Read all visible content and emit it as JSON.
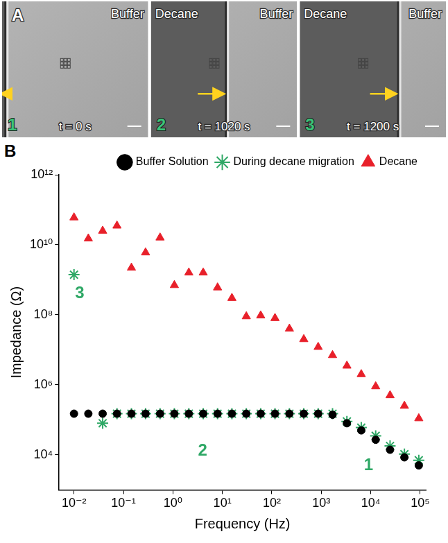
{
  "image_panel": {
    "letter": "A",
    "frames": [
      {
        "number": "1",
        "time": "t = 0 s",
        "phases": [
          "Buffer"
        ]
      },
      {
        "number": "2",
        "time": "t = 1020 s",
        "phases": [
          "Decane",
          "Buffer"
        ]
      },
      {
        "number": "3",
        "time": "t = 1200 s",
        "phases": [
          "Decane",
          "Buffer"
        ]
      }
    ]
  },
  "chart_data": {
    "panel": "B",
    "type": "scatter",
    "log": true,
    "xlabel": "Frequency (Hz)",
    "ylabel": "Impedance (Ω)",
    "x": [
      0.01,
      0.0195,
      0.038,
      0.074,
      0.145,
      0.28,
      0.55,
      1.07,
      2.1,
      4.1,
      8,
      15.6,
      30.5,
      59.6,
      116,
      227,
      443,
      866,
      1690,
      3300,
      6440,
      12600,
      24600,
      48000,
      93800
    ],
    "series": [
      {
        "name": "Buffer Solution",
        "color": "#000000",
        "marker": "circle",
        "values": [
          150000,
          150000,
          150000,
          150000,
          150000,
          150000,
          150000,
          150000,
          150000,
          150000,
          150000,
          150000,
          150000,
          150000,
          150000,
          150000,
          150000,
          150000,
          140000,
          80000,
          50000,
          27000,
          14000,
          8500,
          5000
        ]
      },
      {
        "name": "During decane migration",
        "color": "#2fa866",
        "marker": "star",
        "values": [
          1400000000,
          null,
          80000,
          150000,
          150000,
          150000,
          150000,
          150000,
          150000,
          150000,
          150000,
          150000,
          150000,
          150000,
          150000,
          150000,
          150000,
          150000,
          150000,
          90000,
          60000,
          35000,
          18000,
          10500,
          7000
        ]
      },
      {
        "name": "Decane",
        "color": "#e8202a",
        "marker": "triangle",
        "values": [
          60000000000.0,
          15000000000.0,
          25000000000.0,
          35000000000.0,
          2200000000.0,
          6000000000.0,
          16000000000.0,
          700000000.0,
          1600000000.0,
          1600000000.0,
          600000000.0,
          300000000.0,
          90000000.0,
          95000000.0,
          80000000.0,
          40000000.0,
          20000000.0,
          12000000.0,
          7000000.0,
          3500000.0,
          2000000.0,
          900000.0,
          500000.0,
          250000.0,
          110000.0
        ]
      }
    ],
    "xlim": [
      0.005,
      130000
    ],
    "xticks": [
      {
        "value": 0.01,
        "label": "10⁻²"
      },
      {
        "value": 0.1,
        "label": "10⁻¹"
      },
      {
        "value": 1,
        "label": "10⁰"
      },
      {
        "value": 10,
        "label": "10¹"
      },
      {
        "value": 100,
        "label": "10²"
      },
      {
        "value": 1000,
        "label": "10³"
      },
      {
        "value": 10000,
        "label": "10⁴"
      },
      {
        "value": 100000,
        "label": "10⁵"
      }
    ],
    "ylim": [
      1000,
      1000000000000.0
    ],
    "yticks": [
      {
        "value": 10000,
        "label": "10⁴"
      },
      {
        "value": 1000000,
        "label": "10⁶"
      },
      {
        "value": 100000000,
        "label": "10⁸"
      },
      {
        "value": 10000000000,
        "label": "10¹⁰"
      },
      {
        "value": 1000000000000,
        "label": "10¹²"
      }
    ],
    "grid": false,
    "legend": "top",
    "annotations": [
      {
        "text": "1",
        "x": 9000,
        "y": 5000,
        "color": "#2fa866"
      },
      {
        "text": "2",
        "x": 4,
        "y": 13000,
        "color": "#2fa866"
      },
      {
        "text": "3",
        "x": 0.013,
        "y": 400000000,
        "color": "#2fa866"
      }
    ]
  }
}
